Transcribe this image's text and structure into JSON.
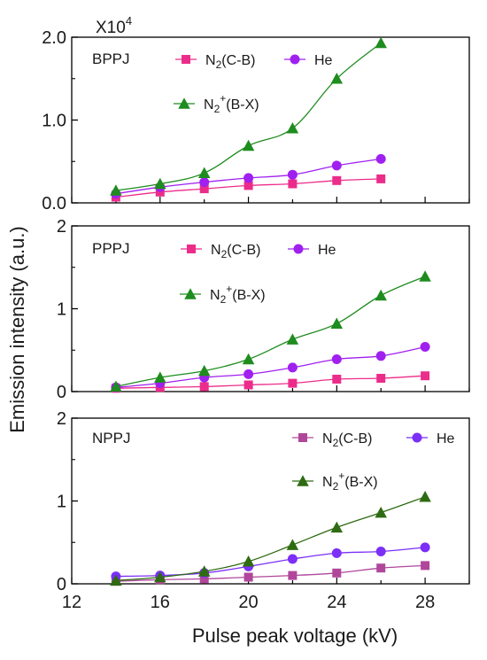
{
  "figure": {
    "ylabel": "Emission intensity (a.u.)",
    "xlabel": "Pulse peak voltage (kV)",
    "scale_note": {
      "base": "X10",
      "exp": "4"
    },
    "x_ticks": [
      "12",
      "16",
      "20",
      "24",
      "28"
    ]
  },
  "chart_data": [
    {
      "type": "line",
      "panel_label": "BPPJ",
      "xlim": [
        12,
        30
      ],
      "ylim": [
        0,
        2.0
      ],
      "y_ticks": [
        {
          "v": 0,
          "label": "0.0"
        },
        {
          "v": 1,
          "label": "1.0"
        },
        {
          "v": 2,
          "label": "2.0"
        }
      ],
      "series": [
        {
          "name": "N2(C-B)",
          "label_main": "N",
          "label_sub": "2",
          "label_sup": "",
          "label_rest": "(C-B)",
          "marker": "square",
          "color": "#ec2c8a",
          "x": [
            14,
            16,
            18,
            20,
            22,
            24,
            26
          ],
          "values": [
            0.07,
            0.13,
            0.17,
            0.21,
            0.23,
            0.27,
            0.29
          ]
        },
        {
          "name": "He",
          "label_main": "He",
          "label_sub": "",
          "label_sup": "",
          "label_rest": "",
          "marker": "circle",
          "color": "#a020f0",
          "x": [
            14,
            16,
            18,
            20,
            22,
            24,
            26
          ],
          "values": [
            0.11,
            0.19,
            0.25,
            0.3,
            0.34,
            0.45,
            0.53
          ]
        },
        {
          "name": "N2+(B-X)",
          "label_main": "N",
          "label_sub": "2",
          "label_sup": "+",
          "label_rest": "(B-X)",
          "marker": "triangle",
          "color": "#1e8c1e",
          "x": [
            14,
            16,
            18,
            20,
            22,
            24,
            26
          ],
          "values": [
            0.15,
            0.23,
            0.36,
            0.69,
            0.9,
            1.5,
            1.93
          ]
        }
      ]
    },
    {
      "type": "line",
      "panel_label": "PPPJ",
      "xlim": [
        12,
        30
      ],
      "ylim": [
        0,
        2
      ],
      "y_ticks": [
        {
          "v": 0,
          "label": "0"
        },
        {
          "v": 1,
          "label": "1"
        },
        {
          "v": 2,
          "label": "2"
        }
      ],
      "series": [
        {
          "name": "N2(C-B)",
          "label_main": "N",
          "label_sub": "2",
          "label_sup": "",
          "label_rest": "(C-B)",
          "marker": "square",
          "color": "#ec2c8a",
          "x": [
            14,
            16,
            18,
            20,
            22,
            24,
            26,
            28
          ],
          "values": [
            0.04,
            0.05,
            0.06,
            0.08,
            0.1,
            0.15,
            0.16,
            0.19
          ]
        },
        {
          "name": "He",
          "label_main": "He",
          "label_sub": "",
          "label_sup": "",
          "label_rest": "",
          "marker": "circle",
          "color": "#a020f0",
          "x": [
            14,
            16,
            18,
            20,
            22,
            24,
            26,
            28
          ],
          "values": [
            0.05,
            0.1,
            0.17,
            0.21,
            0.29,
            0.39,
            0.43,
            0.54
          ]
        },
        {
          "name": "N2+(B-X)",
          "label_main": "N",
          "label_sub": "2",
          "label_sup": "+",
          "label_rest": "(B-X)",
          "marker": "triangle",
          "color": "#1e8c1e",
          "x": [
            14,
            16,
            18,
            20,
            22,
            24,
            26,
            28
          ],
          "values": [
            0.06,
            0.17,
            0.25,
            0.39,
            0.63,
            0.82,
            1.16,
            1.39
          ]
        }
      ]
    },
    {
      "type": "line",
      "panel_label": "NPPJ",
      "xlim": [
        12,
        30
      ],
      "ylim": [
        0,
        2
      ],
      "y_ticks": [
        {
          "v": 0,
          "label": "0"
        },
        {
          "v": 1,
          "label": "1"
        },
        {
          "v": 2,
          "label": "2"
        }
      ],
      "series": [
        {
          "name": "N2(C-B)",
          "label_main": "N",
          "label_sub": "2",
          "label_sup": "",
          "label_rest": "(C-B)",
          "marker": "square",
          "color": "#b0479b",
          "x": [
            14,
            16,
            18,
            20,
            22,
            24,
            26,
            28
          ],
          "values": [
            0.03,
            0.05,
            0.06,
            0.08,
            0.1,
            0.13,
            0.19,
            0.22
          ]
        },
        {
          "name": "He",
          "label_main": "He",
          "label_sub": "",
          "label_sup": "",
          "label_rest": "",
          "marker": "circle",
          "color": "#7b2ff7",
          "x": [
            14,
            16,
            18,
            20,
            22,
            24,
            26,
            28
          ],
          "values": [
            0.09,
            0.1,
            0.13,
            0.21,
            0.3,
            0.37,
            0.39,
            0.44
          ]
        },
        {
          "name": "N2+(B-X)",
          "label_main": "N",
          "label_sub": "2",
          "label_sup": "+",
          "label_rest": "(B-X)",
          "marker": "triangle",
          "color": "#2e6b12",
          "x": [
            14,
            16,
            18,
            20,
            22,
            24,
            26,
            28
          ],
          "values": [
            0.04,
            0.08,
            0.15,
            0.27,
            0.47,
            0.68,
            0.86,
            1.05
          ]
        }
      ]
    }
  ]
}
